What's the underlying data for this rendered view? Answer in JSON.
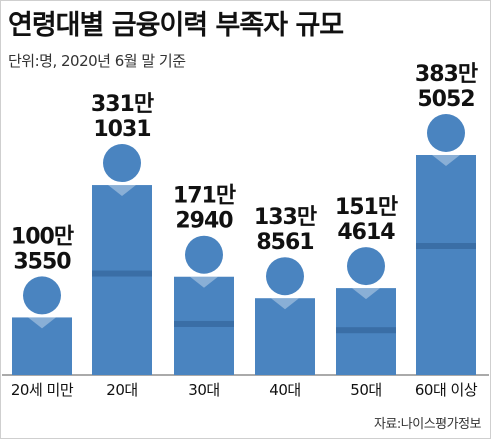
{
  "header": {
    "title": "연령대별 금융이력 부족자 규모",
    "subtitle": "단위:명, 2020년 6월 말 기준"
  },
  "source": "자료:나이스평가정보",
  "colors": {
    "figure": "#4a84c0",
    "belt": "#3a6ea6",
    "text": "#111111",
    "axis": "#555555"
  },
  "chart_data": {
    "type": "bar",
    "categories": [
      "20세 미만",
      "20대",
      "30대",
      "40대",
      "50대",
      "60대 이상"
    ],
    "values": [
      1003550,
      3311031,
      1712940,
      1338561,
      1514614,
      3835052
    ],
    "data_labels": [
      [
        "100만",
        "3550"
      ],
      [
        "331만",
        "1031"
      ],
      [
        "171만",
        "2940"
      ],
      [
        "133만",
        "8561"
      ],
      [
        "151만",
        "4614"
      ],
      [
        "383만",
        "5052"
      ]
    ],
    "title": "연령대별 금융이력 부족자 규모",
    "unit": "명",
    "ylim": [
      0,
      4000000
    ]
  }
}
